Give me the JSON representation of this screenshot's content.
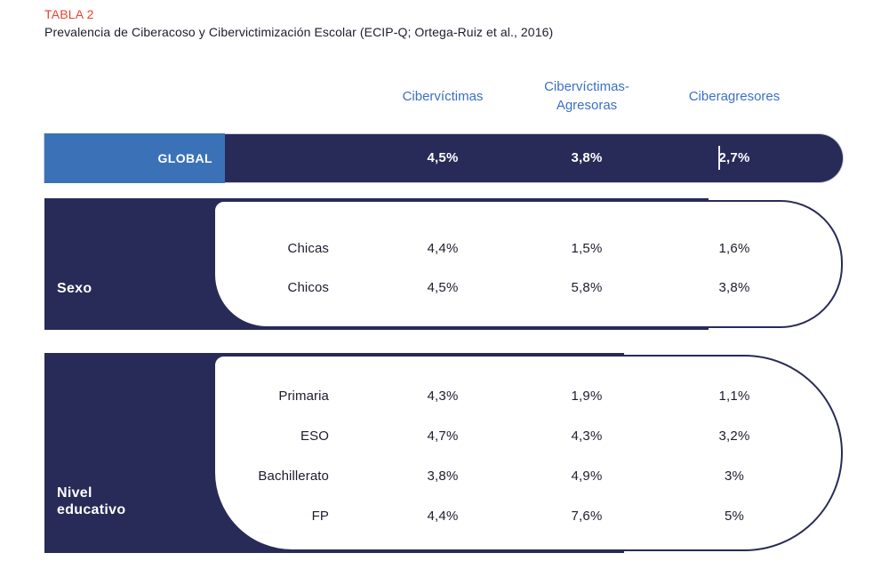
{
  "header": {
    "tag": "TABLA 2",
    "title": "Prevalencia de Ciberacoso y Cibervictimización Escolar (ECIP-Q; Ortega-Ruiz et al., 2016)"
  },
  "columns": [
    "Cibervíctimas",
    "Cibervíctimas-Agresoras",
    "Ciberagresores"
  ],
  "global_row": {
    "label": "GLOBAL",
    "values": [
      "4,5%",
      "3,8%",
      "2,7%"
    ]
  },
  "groups": [
    {
      "label": "Sexo",
      "rows": [
        {
          "label": "Chicas",
          "values": [
            "4,4%",
            "1,5%",
            "1,6%"
          ]
        },
        {
          "label": "Chicos",
          "values": [
            "4,5%",
            "5,8%",
            "3,8%"
          ]
        }
      ]
    },
    {
      "label": "Nivel educativo",
      "rows": [
        {
          "label": "Primaria",
          "values": [
            "4,3%",
            "1,9%",
            "1,1%"
          ]
        },
        {
          "label": "ESO",
          "values": [
            "4,7%",
            "4,3%",
            "3,2%"
          ]
        },
        {
          "label": "Bachillerato",
          "values": [
            "3,8%",
            "4,9%",
            "3%"
          ]
        },
        {
          "label": "FP",
          "values": [
            "4,4%",
            "7,6%",
            "5%"
          ]
        }
      ]
    }
  ],
  "chart_data": {
    "type": "table",
    "title": "TABLA 2",
    "subtitle": "Prevalencia de Ciberacoso y Cibervictimización Escolar (ECIP-Q; Ortega-Ruiz et al., 2016)",
    "columns": [
      "Cibervíctimas",
      "Cibervíctimas-Agresoras",
      "Ciberagresores"
    ],
    "rows": [
      {
        "group": "GLOBAL",
        "label": "GLOBAL",
        "values_pct": [
          4.5,
          3.8,
          2.7
        ]
      },
      {
        "group": "Sexo",
        "label": "Chicas",
        "values_pct": [
          4.4,
          1.5,
          1.6
        ]
      },
      {
        "group": "Sexo",
        "label": "Chicos",
        "values_pct": [
          4.5,
          5.8,
          3.8
        ]
      },
      {
        "group": "Nivel educativo",
        "label": "Primaria",
        "values_pct": [
          4.3,
          1.9,
          1.1
        ]
      },
      {
        "group": "Nivel educativo",
        "label": "ESO",
        "values_pct": [
          4.7,
          4.3,
          3.2
        ]
      },
      {
        "group": "Nivel educativo",
        "label": "Bachillerato",
        "values_pct": [
          3.8,
          4.9,
          3.0
        ]
      },
      {
        "group": "Nivel educativo",
        "label": "FP",
        "values_pct": [
          4.4,
          7.6,
          5.0
        ]
      }
    ]
  },
  "colors": {
    "navy": "#282b57",
    "accent_blue": "#3b72b7",
    "header_blue": "#3b70c6",
    "tag_red": "#ed4130",
    "body_text": "#1d1d2d",
    "background": "#ffffff"
  }
}
